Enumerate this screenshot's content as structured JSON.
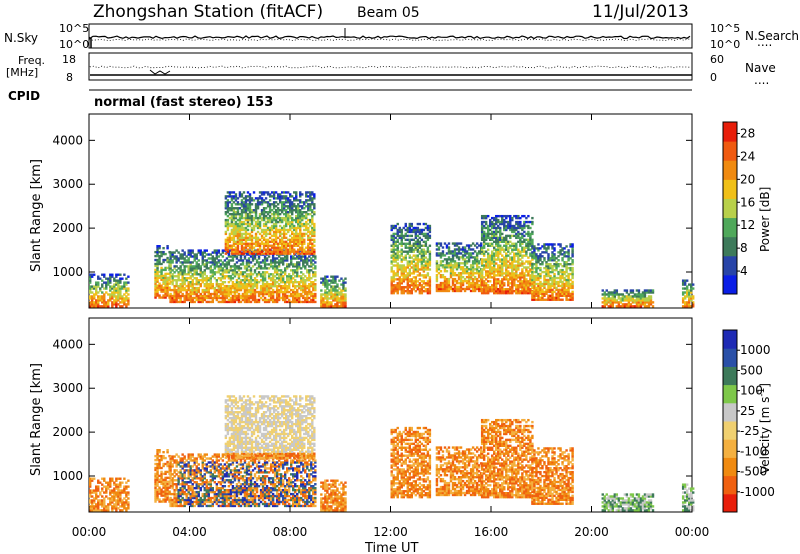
{
  "header": {
    "station_title": "Zhongshan Station (fitACF)",
    "beam": "Beam 05",
    "date": "11/Jul/2013"
  },
  "nsky_panel": {
    "left_label": "N.Sky",
    "right_label": "N.Search",
    "ticks_left": [
      "10^5",
      "10^0"
    ],
    "ticks_right": [
      "10^5",
      "10^0"
    ],
    "data_label": "...."
  },
  "freq_panel": {
    "left_label_1": "Freq.",
    "left_label_2": "[MHz]",
    "right_label": "Nave",
    "ticks_left": [
      "18",
      "8"
    ],
    "ticks_right": [
      "60",
      "0"
    ]
  },
  "cpid_panel": {
    "left_label": "CPID",
    "mode_text": "normal (fast stereo) 153"
  },
  "colors": {
    "power_scale": [
      "#0a1ee6",
      "#2844a8",
      "#3d7a5a",
      "#4fa85a",
      "#b8d04a",
      "#f0c018",
      "#f08a10",
      "#f05a10",
      "#e81e0a"
    ],
    "velocity_scale": [
      "#e81e0a",
      "#f06010",
      "#f08a10",
      "#f4b040",
      "#f0d070",
      "#c8c8c8",
      "#7ec84a",
      "#3d7a5a",
      "#2a50a8",
      "#1e2ab4"
    ]
  },
  "chart_data": [
    {
      "type": "heatmap",
      "title": "",
      "ylabel": "Slant Range [km]",
      "xlabel": "",
      "y_ticks": [
        "1000",
        "2000",
        "3000",
        "4000"
      ],
      "ylim": [
        180,
        4600
      ],
      "x_ticks": [
        "00:00",
        "04:00",
        "08:00",
        "12:00",
        "16:00",
        "20:00",
        "00:00"
      ],
      "xlim_hours": [
        0,
        24
      ],
      "colorbar": {
        "label": "Power [dB]",
        "ticks": [
          "4",
          "8",
          "12",
          "16",
          "20",
          "24",
          "28"
        ],
        "range": [
          0,
          30
        ]
      }
    },
    {
      "type": "heatmap",
      "title": "",
      "ylabel": "Slant Range [km]",
      "xlabel": "Time UT",
      "y_ticks": [
        "1000",
        "2000",
        "3000",
        "4000"
      ],
      "ylim": [
        180,
        4600
      ],
      "x_ticks": [
        "00:00",
        "04:00",
        "08:00",
        "12:00",
        "16:00",
        "20:00",
        "00:00"
      ],
      "xlim_hours": [
        0,
        24
      ],
      "colorbar": {
        "label": "Velocity [m s",
        "label_sup": "-1",
        "label_end": "]",
        "ticks": [
          "1000",
          "500",
          "100",
          "25",
          "-25",
          "-100",
          "-500",
          "-1000"
        ]
      }
    }
  ]
}
